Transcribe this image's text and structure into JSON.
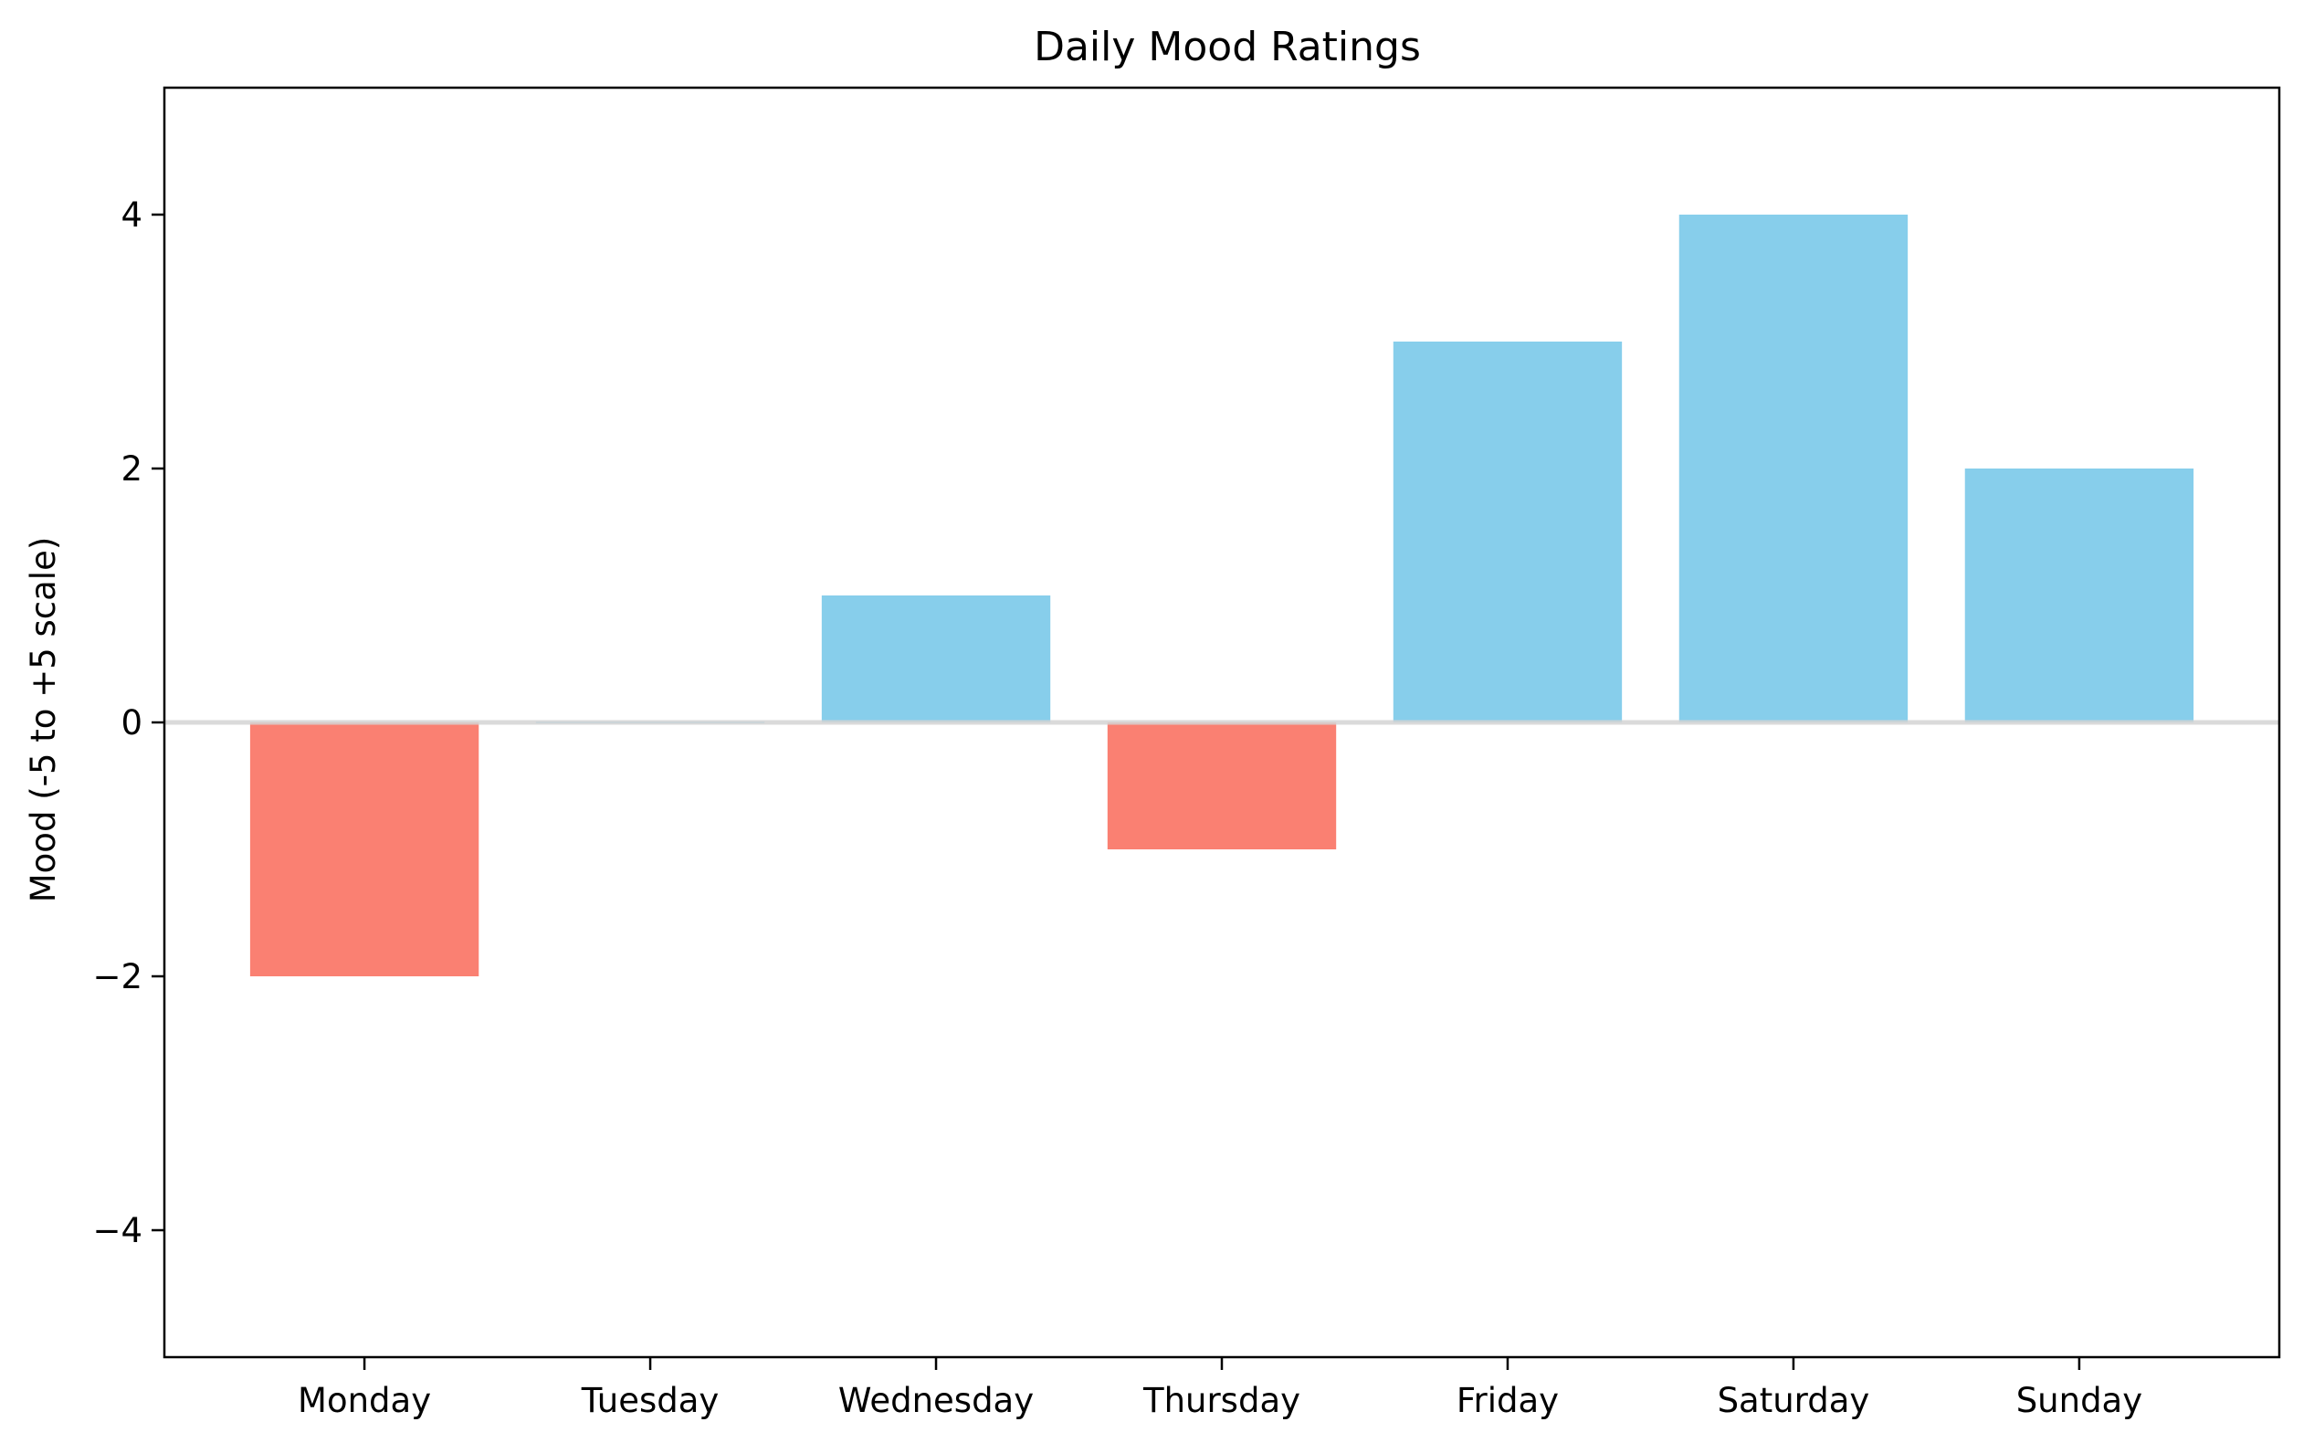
{
  "chart_data": {
    "type": "bar",
    "title": "Daily Mood Ratings",
    "xlabel": "",
    "ylabel": "Mood (-5 to +5 scale)",
    "categories": [
      "Monday",
      "Tuesday",
      "Wednesday",
      "Thursday",
      "Friday",
      "Saturday",
      "Sunday"
    ],
    "values": [
      -2,
      0,
      1,
      -1,
      3,
      4,
      2
    ],
    "ylim": [
      -5,
      5
    ],
    "yticks": [
      -4,
      -2,
      0,
      2,
      4
    ],
    "ytick_labels": [
      "−4",
      "−2",
      "0",
      "2",
      "4"
    ],
    "grid": false,
    "zero_line": true,
    "colors": {
      "positive": "#87CEEB",
      "negative": "#FA8072",
      "zero_line": "#D3D3D3",
      "axes": "#000000"
    }
  }
}
